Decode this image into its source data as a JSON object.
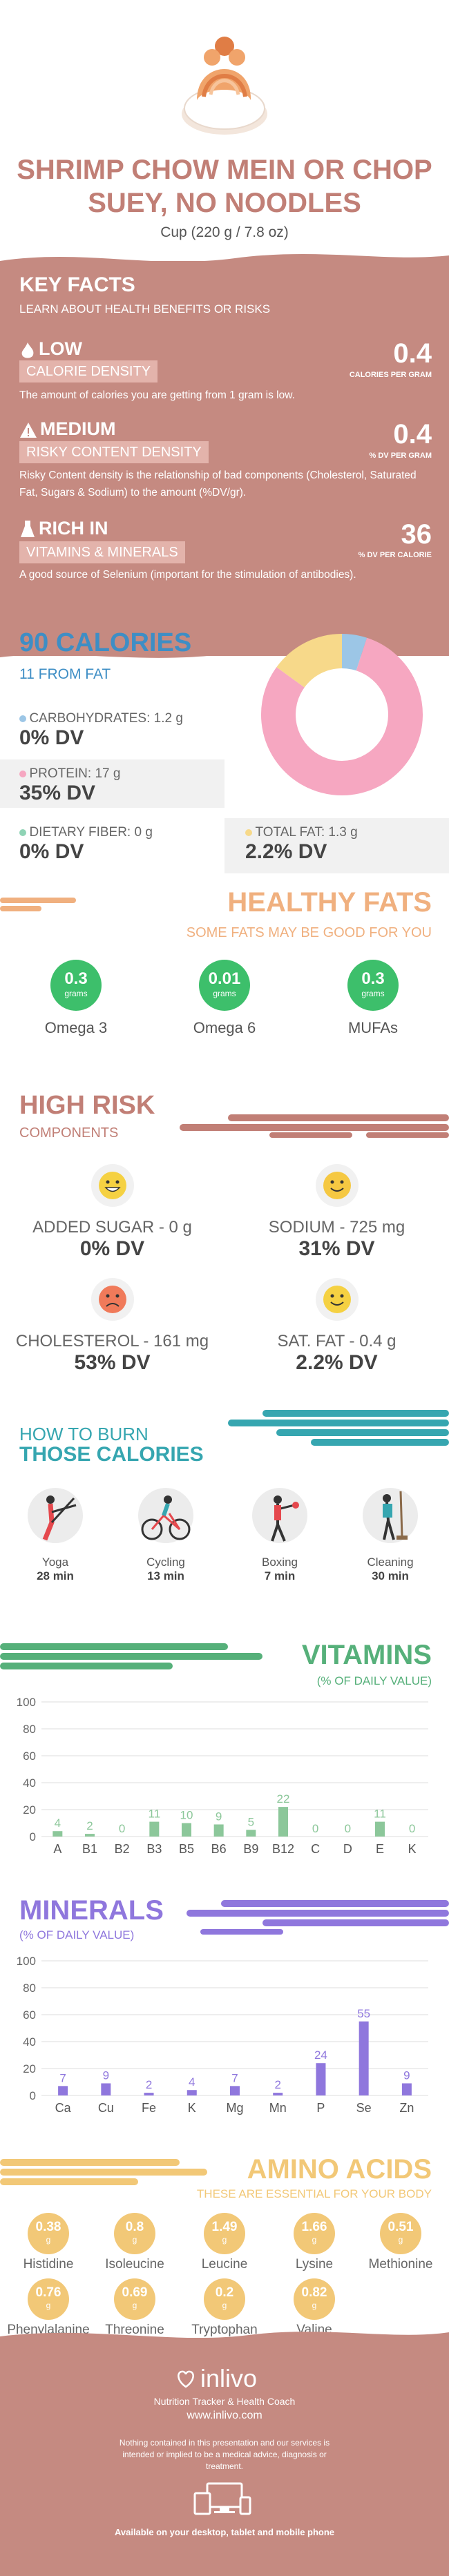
{
  "header": {
    "title": "SHRIMP CHOW MEIN OR CHOP SUEY, NO NOODLES",
    "serving": "Cup (220 g / 7.8 oz)"
  },
  "key_facts": {
    "title": "KEY FACTS",
    "subtitle": "LEARN ABOUT HEALTH BENEFITS OR RISKS",
    "items": [
      {
        "level": "LOW",
        "tag": "CALORIE DENSITY",
        "value": "0.4",
        "unit": "CALORIES PER GRAM",
        "desc": "The amount of calories you are getting from 1 gram is low.",
        "icon": "flame-icon"
      },
      {
        "level": "MEDIUM",
        "tag": "RISKY CONTENT DENSITY",
        "value": "0.4",
        "unit": "% DV PER GRAM",
        "desc": "Risky Content density is the relationship of bad components (Cholesterol, Saturated Fat, Sugars & Sodium) to the amount (%DV/gr).",
        "icon": "warning-icon"
      },
      {
        "level": "RICH  IN",
        "tag": "VITAMINS & MINERALS",
        "value": "36",
        "unit": "% DV PER CALORIE",
        "desc": "A good source of Selenium (important for the stimulation of antibodies).",
        "icon": "flask-icon"
      }
    ]
  },
  "calories": {
    "title": "90 CALORIES",
    "from_fat": "11 FROM FAT",
    "carbs_label": "CARBOHYDRATES: 1.2 g",
    "carbs_dv": "0% DV",
    "protein_label": "PROTEIN: 17 g",
    "protein_dv": "35% DV",
    "fiber_label": "DIETARY FIBER: 0 g",
    "fiber_dv": "0% DV",
    "fat_label": "TOTAL FAT: 1.3 g",
    "fat_dv": "2.2% DV",
    "donut": [
      {
        "name": "carbs",
        "fraction": 0.05,
        "color": "#9cc6e6"
      },
      {
        "name": "protein",
        "fraction": 0.8,
        "color": "#f6a7c1"
      },
      {
        "name": "fat",
        "fraction": 0.15,
        "color": "#f7d98a"
      }
    ]
  },
  "healthy_fats": {
    "title": "HEALTHY FATS",
    "subtitle": "SOME FATS MAY BE GOOD FOR YOU",
    "items": [
      {
        "value": "0.3",
        "unit": "grams",
        "label": "Omega 3"
      },
      {
        "value": "0.01",
        "unit": "grams",
        "label": "Omega 6"
      },
      {
        "value": "0.3",
        "unit": "grams",
        "label": "MUFAs"
      }
    ]
  },
  "high_risk": {
    "title": "HIGH RISK",
    "subtitle": "COMPONENTS",
    "items": [
      {
        "label": "ADDED SUGAR - 0 g",
        "dv": "0% DV",
        "face": "grin-icon",
        "color": "#f5d142"
      },
      {
        "label": "SODIUM - 725 mg",
        "dv": "31% DV",
        "face": "smile-icon",
        "color": "#f5c842"
      },
      {
        "label": "CHOLESTEROL - 161 mg",
        "dv": "53% DV",
        "face": "frown-icon",
        "color": "#f07a5a"
      },
      {
        "label": "SAT. FAT - 0.4 g",
        "dv": "2.2% DV",
        "face": "smile-icon",
        "color": "#f5d142"
      }
    ]
  },
  "burn": {
    "title1": "HOW TO BURN",
    "title2": "THOSE CALORIES",
    "items": [
      {
        "label": "Yoga",
        "min": "28 min"
      },
      {
        "label": "Cycling",
        "min": "13 min"
      },
      {
        "label": "Boxing",
        "min": "7 min"
      },
      {
        "label": "Cleaning",
        "min": "30 min"
      }
    ]
  },
  "vitamins": {
    "title": "VITAMINS",
    "subtitle": "(% OF DAILY VALUE)"
  },
  "minerals": {
    "title": "MINERALS",
    "subtitle": "(% OF DAILY VALUE)"
  },
  "chart_data": [
    {
      "type": "bar",
      "categories": [
        "A",
        "B1",
        "B2",
        "B3",
        "B5",
        "B6",
        "B9",
        "B12",
        "C",
        "D",
        "E",
        "K"
      ],
      "values": [
        4,
        2,
        0,
        11,
        10,
        9,
        5,
        22,
        0,
        0,
        11,
        0
      ],
      "ylim": [
        0,
        100
      ],
      "yticks": [
        0,
        20,
        40,
        60,
        80,
        100
      ],
      "color": "#8cc79a"
    },
    {
      "type": "bar",
      "categories": [
        "Ca",
        "Cu",
        "Fe",
        "K",
        "Mg",
        "Mn",
        "P",
        "Se",
        "Zn"
      ],
      "values": [
        7,
        9,
        2,
        4,
        7,
        2,
        24,
        55,
        9
      ],
      "ylim": [
        0,
        100
      ],
      "yticks": [
        0,
        20,
        40,
        60,
        80,
        100
      ],
      "color": "#8f77dd"
    }
  ],
  "amino": {
    "title": "AMINO ACIDS",
    "subtitle": "THESE ARE ESSENTIAL FOR YOUR BODY",
    "unit": "g",
    "items": [
      {
        "value": "0.38",
        "label": "Histidine"
      },
      {
        "value": "0.8",
        "label": "Isoleucine"
      },
      {
        "value": "1.49",
        "label": "Leucine"
      },
      {
        "value": "1.66",
        "label": "Lysine"
      },
      {
        "value": "0.51",
        "label": "Methionine"
      },
      {
        "value": "0.76",
        "label": "Phenylalanine"
      },
      {
        "value": "0.69",
        "label": "Threonine"
      },
      {
        "value": "0.2",
        "label": "Tryptophan"
      },
      {
        "value": "0.82",
        "label": "Valine"
      }
    ]
  },
  "footer": {
    "brand": "inlivo",
    "tagline": "Nutrition Tracker & Health Coach",
    "url": "www.inlivo.com",
    "disclaimer": "Nothing contained in this presentation and our services is intended or implied to be a medical advice, diagnosis or treatment.",
    "devices": "Available on your desktop, tablet and mobile phone"
  }
}
